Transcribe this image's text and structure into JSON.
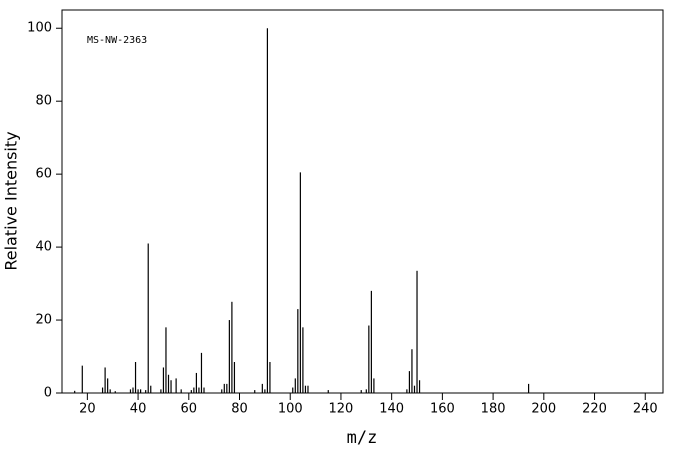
{
  "chart_data": {
    "type": "spectrum",
    "annotation": "MS-NW-2363",
    "x_label": "m/z",
    "y_label": "Relative Intensity",
    "x": [
      15,
      18,
      26,
      27,
      28,
      29,
      31,
      37,
      38,
      39,
      40,
      41,
      43,
      44,
      45,
      49,
      50,
      51,
      52,
      53,
      55,
      57,
      61,
      62,
      63,
      64,
      65,
      66,
      73,
      74,
      75,
      76,
      77,
      78,
      86,
      89,
      90,
      91,
      92,
      101,
      102,
      103,
      104,
      105,
      106,
      107,
      115,
      128,
      130,
      131,
      132,
      133,
      146,
      147,
      148,
      149,
      150,
      151,
      194
    ],
    "values": [
      0.6,
      7.5,
      1.5,
      7,
      4,
      1,
      0.5,
      1,
      1.5,
      8.5,
      1,
      1,
      0.8,
      41,
      2,
      1,
      7,
      18,
      5,
      3.5,
      4,
      1,
      0.8,
      1.5,
      5.5,
      1.5,
      11,
      1.5,
      1,
      2.5,
      2.5,
      20,
      25,
      8.5,
      0.8,
      2.5,
      1,
      100,
      8.5,
      1.5,
      4,
      23,
      60.5,
      18,
      2,
      2,
      0.8,
      0.8,
      1,
      18.5,
      28,
      4,
      1,
      6,
      12,
      2,
      33.5,
      3.5,
      2.5
    ],
    "color": "#000000",
    "xlim": [
      10,
      247
    ],
    "ylim": [
      0,
      105
    ],
    "xticks": [
      20,
      40,
      60,
      80,
      100,
      120,
      140,
      160,
      180,
      200,
      220,
      240
    ],
    "yticks": [
      0,
      20,
      40,
      60,
      80,
      100
    ]
  }
}
